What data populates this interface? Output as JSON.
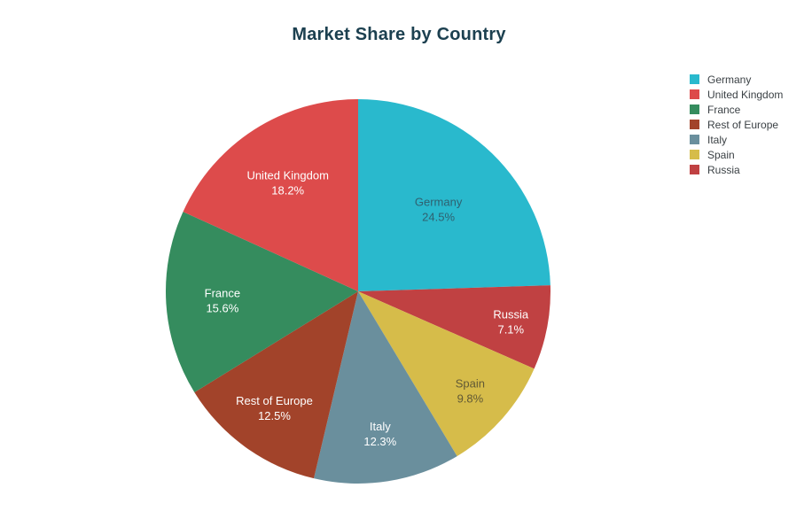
{
  "chart_data": {
    "type": "pie",
    "title": "Market Share by Country",
    "title_color": "#1C4050",
    "legend_position": "right",
    "legend_text_color": "#3B4145",
    "background_color": "#FFFFFF",
    "layout_hint": "slices sorted descending, largest starts at 12 o'clock going clockwise, remaining wrap counterclockwise (plotly-style); labels inside slices show name and percent",
    "slices": [
      {
        "label": "Germany",
        "value": 24.5,
        "display": "24.5%",
        "color": "#29B9CD",
        "label_color": "#2F6170"
      },
      {
        "label": "United Kingdom",
        "value": 18.2,
        "display": "18.2%",
        "color": "#DD4B4B",
        "label_color": "#FFFFFF"
      },
      {
        "label": "France",
        "value": 15.6,
        "display": "15.6%",
        "color": "#358C5E",
        "label_color": "#FFFFFF"
      },
      {
        "label": "Rest of Europe",
        "value": 12.5,
        "display": "12.5%",
        "color": "#A2432A",
        "label_color": "#FFFFFF"
      },
      {
        "label": "Italy",
        "value": 12.3,
        "display": "12.3%",
        "color": "#6A8F9D",
        "label_color": "#FFFFFF"
      },
      {
        "label": "Spain",
        "value": 9.8,
        "display": "9.8%",
        "color": "#D6BC4A",
        "label_color": "#615935"
      },
      {
        "label": "Russia",
        "value": 7.1,
        "display": "7.1%",
        "color": "#C04142",
        "label_color": "#FFFFFF"
      }
    ]
  }
}
